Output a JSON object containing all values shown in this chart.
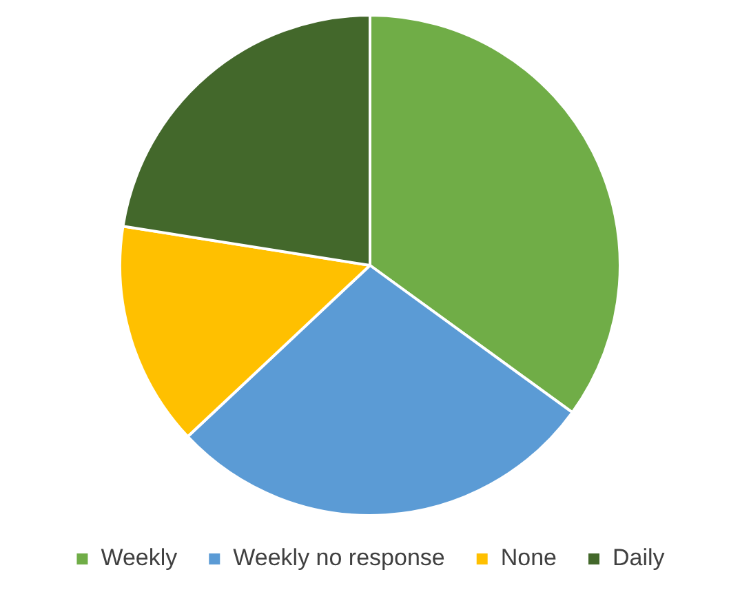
{
  "chart_data": {
    "type": "pie",
    "categories": [
      "Weekly",
      "Weekly no response",
      "None",
      "Daily"
    ],
    "values": [
      35,
      28,
      14.5,
      22.5
    ],
    "colors": [
      "#70ad47",
      "#5b9bd5",
      "#ffc000",
      "#43682b"
    ],
    "legend": "bottom"
  }
}
